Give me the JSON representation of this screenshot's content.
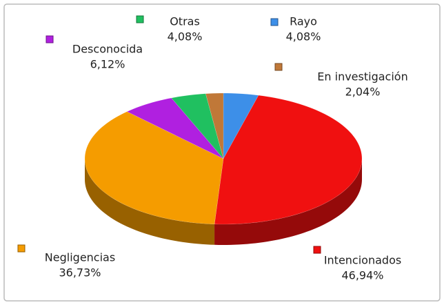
{
  "chart_data": {
    "type": "pie3d",
    "categories": [
      "Rayo",
      "Intencionados",
      "Negligencias",
      "Desconocida",
      "Otras",
      "En investigación"
    ],
    "values": [
      4.08,
      46.94,
      36.73,
      6.12,
      4.08,
      2.04
    ],
    "value_labels": [
      "4,08%",
      "46,94%",
      "36,73%",
      "6,12%",
      "4,08%",
      "2,04%"
    ],
    "colors": [
      "#3d8fe8",
      "#f01010",
      "#f59c00",
      "#b020e0",
      "#20c060",
      "#c07838"
    ]
  }
}
